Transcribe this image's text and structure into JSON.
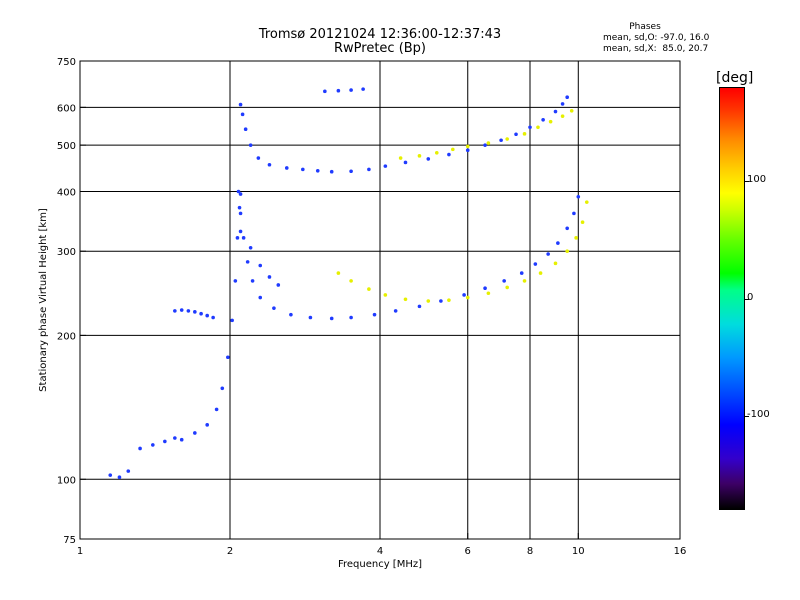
{
  "header": {
    "title_line1": "Tromsø 20121024 12:36:00-12:37:43",
    "title_line2": "RwPretec (Bp)",
    "stats_title": "Phases",
    "stats_o": "mean, sd,O: -97.0, 16.0",
    "stats_x": "mean, sd,X:  85.0, 20.7"
  },
  "chart_data": {
    "type": "scatter",
    "title": "Tromsø 20121024 12:36:00-12:37:43",
    "subtitle": "RwPretec (Bp)",
    "xlabel": "Frequency [MHz]",
    "ylabel": "Stationary phase Virtual Height [km]",
    "x_scale": "log",
    "y_scale": "log",
    "xlim": [
      1,
      16
    ],
    "ylim": [
      75,
      750
    ],
    "x_ticks": [
      1,
      2,
      4,
      6,
      8,
      10,
      16
    ],
    "y_ticks": [
      75,
      100,
      200,
      300,
      400,
      500,
      600,
      750
    ],
    "x_gridlines": [
      2,
      4,
      6,
      8,
      10
    ],
    "y_gridlines": [
      100,
      200,
      300,
      400,
      500,
      600
    ],
    "colorbar": {
      "label": "[deg]",
      "ticks": [
        100,
        0,
        -100
      ],
      "range": [
        -180,
        180
      ]
    },
    "traces": [
      {
        "name": "",
        "mode": "O",
        "phase": -100,
        "points": [
          [
            2.1,
            608
          ],
          [
            2.12,
            580
          ],
          [
            2.15,
            540
          ],
          [
            2.2,
            500
          ],
          [
            2.28,
            470
          ],
          [
            2.4,
            455
          ],
          [
            2.6,
            448
          ],
          [
            2.8,
            445
          ],
          [
            3.0,
            442
          ],
          [
            3.2,
            440
          ],
          [
            3.5,
            441
          ],
          [
            3.8,
            445
          ],
          [
            4.1,
            452
          ],
          [
            4.5,
            460
          ],
          [
            5.0,
            468
          ],
          [
            5.5,
            478
          ],
          [
            6.0,
            488
          ],
          [
            6.5,
            500
          ],
          [
            7.0,
            512
          ],
          [
            7.5,
            527
          ],
          [
            8.0,
            545
          ],
          [
            8.5,
            565
          ],
          [
            9.0,
            588
          ],
          [
            9.3,
            610
          ],
          [
            9.5,
            630
          ]
        ]
      },
      {
        "name": "",
        "mode": "X",
        "phase": 85,
        "points": [
          [
            4.4,
            470
          ],
          [
            4.8,
            475
          ],
          [
            5.2,
            482
          ],
          [
            5.6,
            490
          ],
          [
            6.0,
            497
          ],
          [
            6.6,
            505
          ],
          [
            7.2,
            515
          ],
          [
            7.8,
            528
          ],
          [
            8.3,
            545
          ],
          [
            8.8,
            560
          ],
          [
            9.3,
            575
          ],
          [
            9.7,
            590
          ]
        ]
      },
      {
        "name": "",
        "mode": "O",
        "phase": -100,
        "points": [
          [
            2.08,
            400
          ],
          [
            2.1,
            360
          ],
          [
            2.13,
            320
          ],
          [
            2.17,
            285
          ],
          [
            2.22,
            260
          ],
          [
            2.3,
            240
          ],
          [
            2.45,
            228
          ],
          [
            2.65,
            221
          ],
          [
            2.9,
            218
          ],
          [
            3.2,
            217
          ],
          [
            3.5,
            218
          ],
          [
            3.9,
            221
          ],
          [
            4.3,
            225
          ],
          [
            4.8,
            230
          ],
          [
            5.3,
            236
          ],
          [
            5.9,
            243
          ],
          [
            6.5,
            251
          ],
          [
            7.1,
            260
          ],
          [
            7.7,
            270
          ],
          [
            8.2,
            282
          ],
          [
            8.7,
            296
          ],
          [
            9.1,
            312
          ],
          [
            9.5,
            335
          ],
          [
            9.8,
            360
          ],
          [
            10.0,
            390
          ]
        ]
      },
      {
        "name": "",
        "mode": "X",
        "phase": 85,
        "points": [
          [
            3.3,
            270
          ],
          [
            3.5,
            260
          ],
          [
            3.8,
            250
          ],
          [
            4.1,
            243
          ],
          [
            4.5,
            238
          ],
          [
            5.0,
            236
          ],
          [
            5.5,
            237
          ],
          [
            6.0,
            240
          ],
          [
            6.6,
            245
          ],
          [
            7.2,
            252
          ],
          [
            7.8,
            260
          ],
          [
            8.4,
            270
          ],
          [
            9.0,
            283
          ],
          [
            9.5,
            300
          ],
          [
            9.9,
            320
          ],
          [
            10.2,
            345
          ],
          [
            10.4,
            380
          ]
        ]
      },
      {
        "name": "",
        "mode": "O",
        "phase": -100,
        "points": [
          [
            1.55,
            225
          ],
          [
            1.6,
            226
          ],
          [
            1.65,
            225
          ],
          [
            1.7,
            224
          ],
          [
            1.75,
            222
          ],
          [
            1.8,
            220
          ],
          [
            1.85,
            218
          ]
        ]
      },
      {
        "name": "",
        "mode": "O",
        "phase": -100,
        "points": [
          [
            1.15,
            102
          ],
          [
            1.2,
            101
          ],
          [
            1.25,
            104
          ],
          [
            1.32,
            116
          ],
          [
            1.4,
            118
          ],
          [
            1.48,
            120
          ],
          [
            1.55,
            122
          ],
          [
            1.6,
            121
          ],
          [
            1.7,
            125
          ],
          [
            1.8,
            130
          ],
          [
            1.88,
            140
          ],
          [
            1.93,
            155
          ],
          [
            1.98,
            180
          ],
          [
            2.02,
            215
          ],
          [
            2.05,
            260
          ],
          [
            2.07,
            320
          ],
          [
            2.09,
            370
          ],
          [
            2.1,
            395
          ]
        ]
      },
      {
        "name": "",
        "mode": "O",
        "phase": -100,
        "points": [
          [
            2.1,
            330
          ],
          [
            2.2,
            305
          ],
          [
            2.3,
            280
          ],
          [
            2.4,
            265
          ],
          [
            2.5,
            255
          ]
        ]
      },
      {
        "name": "",
        "mode": "O",
        "phase": -100,
        "points": [
          [
            3.1,
            648
          ],
          [
            3.3,
            650
          ],
          [
            3.5,
            652
          ],
          [
            3.7,
            655
          ]
        ]
      }
    ]
  }
}
